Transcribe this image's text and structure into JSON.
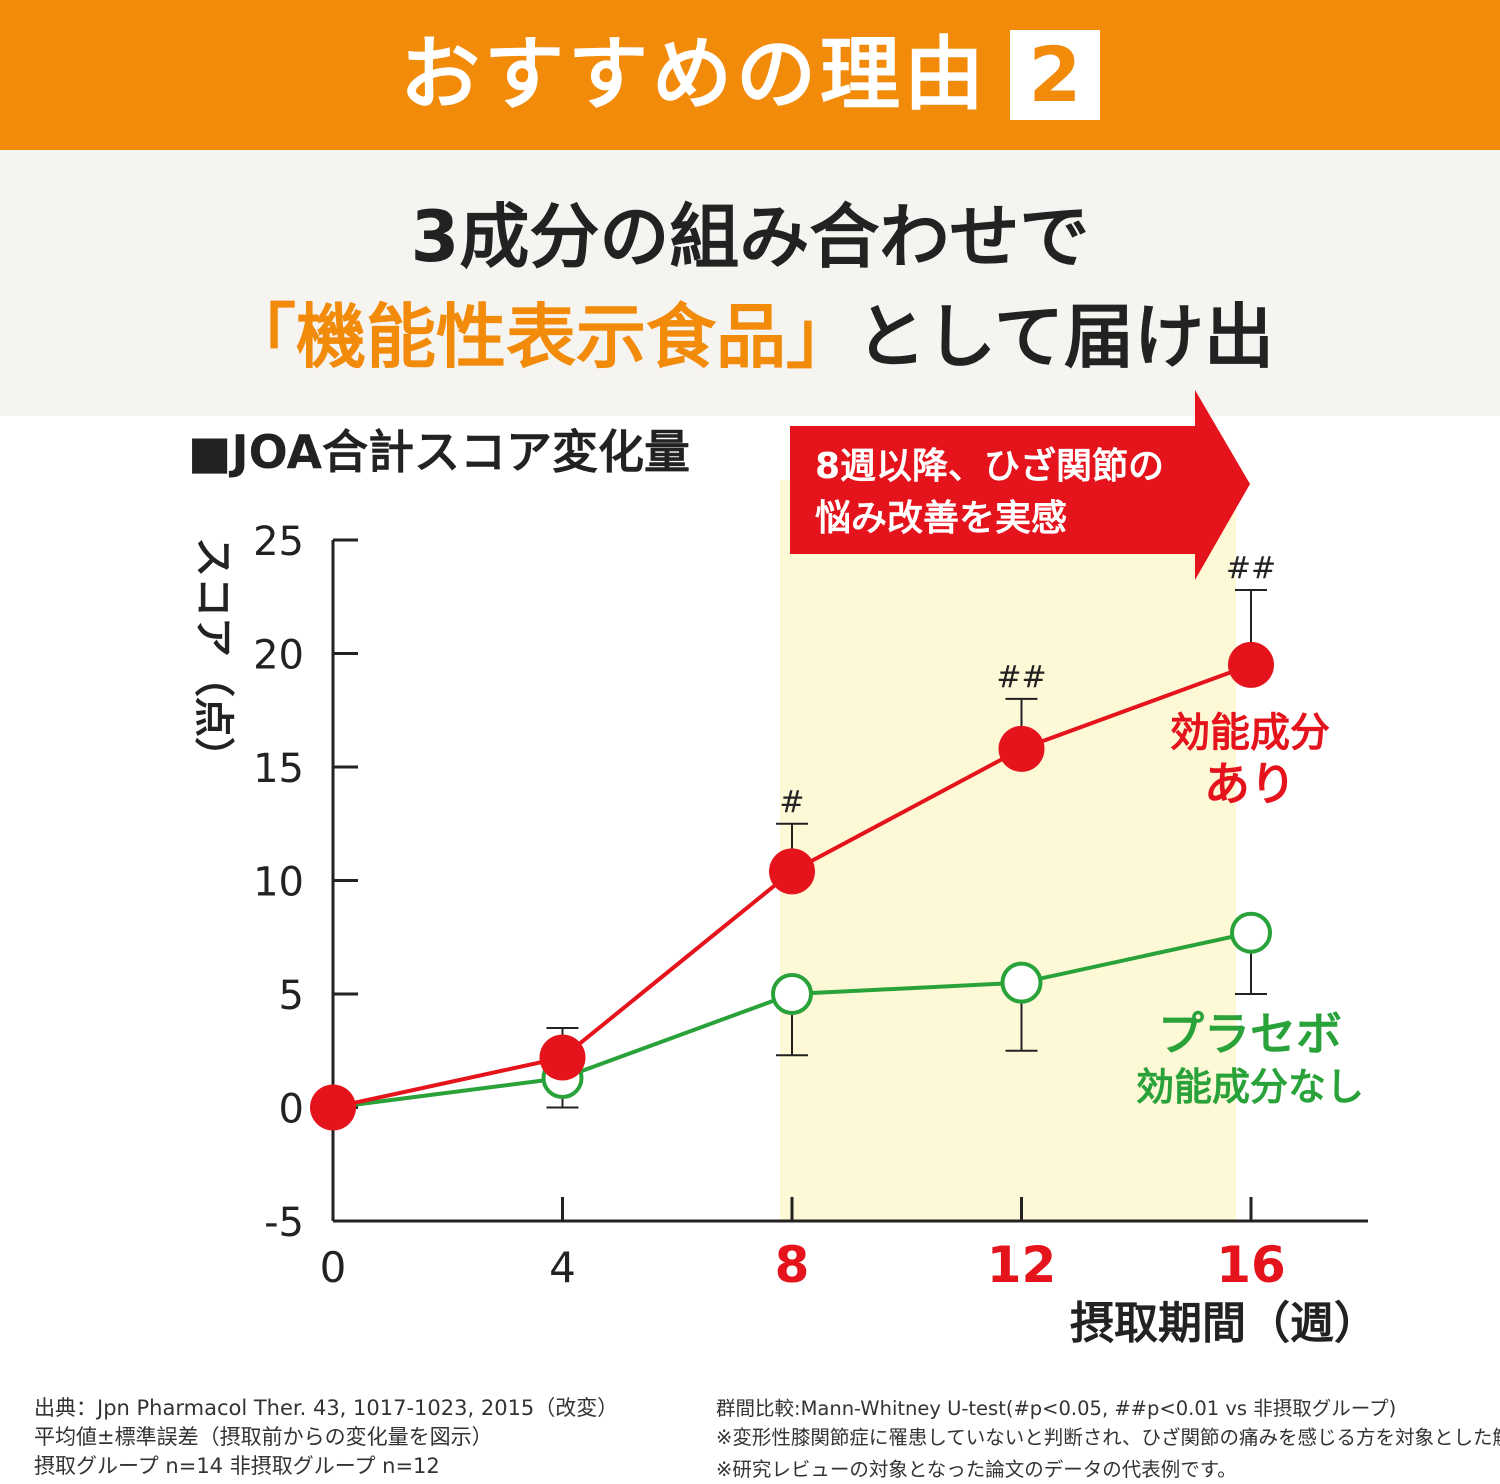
{
  "header": {
    "title": "おすすめの理由",
    "number": "2"
  },
  "subtitle": {
    "line1": "3成分の組み合わせで",
    "highlight": "「機能性表示食品」",
    "line2_rest": "として届け出"
  },
  "arrow_callout": {
    "line1": "8週以降、ひざ関節の",
    "line2": "悩み改善を実感"
  },
  "colors": {
    "orange": "#f28a0a",
    "red": "#e5131c",
    "green": "#2aa23a",
    "highlight_band": "#fdf8d6"
  },
  "chart_data": {
    "type": "line",
    "title": "■JOA合計スコア変化量",
    "ylabel": "スコア（点）",
    "xlabel": "摂取期間（週）",
    "x": [
      0,
      4,
      8,
      12,
      16
    ],
    "x_tick_labels": [
      "0",
      "4",
      "8",
      "12",
      "16"
    ],
    "x_emphasized": [
      8,
      12,
      16
    ],
    "y_ticks": [
      -5,
      0,
      5,
      10,
      15,
      20,
      25
    ],
    "y_tick_labels": [
      "-5",
      "0",
      "5",
      "10",
      "15",
      "20",
      "25"
    ],
    "ylim": [
      -5,
      25
    ],
    "xlim": [
      0,
      16
    ],
    "highlight_range": [
      8,
      16
    ],
    "series": [
      {
        "name": "効能成分あり",
        "label_line1": "効能成分",
        "label_line2": "あり",
        "color": "red",
        "marker": "filled-circle",
        "values": [
          0,
          2.2,
          10.4,
          15.8,
          19.5
        ],
        "error_upper": [
          0,
          3.5,
          12.5,
          18.0,
          22.8
        ],
        "significance": [
          "",
          "",
          "#",
          "##",
          "##"
        ]
      },
      {
        "name": "プラセボ 効能成分なし",
        "label_line1": "プラセボ",
        "label_line2": "効能成分なし",
        "color": "green",
        "marker": "open-circle",
        "values": [
          0,
          1.3,
          5.0,
          5.5,
          7.7
        ],
        "error_lower": [
          0,
          0,
          2.3,
          2.5,
          5.0
        ]
      }
    ]
  },
  "footnotes": {
    "left": [
      "出典：Jpn Pharmacol Ther. 43, 1017-1023, 2015（改変）",
      "平均値±標準誤差（摂取前からの変化量を図示）",
      "摂取グループ n=14  非摂取グループ n=12"
    ],
    "right": [
      "群間比較:Mann-Whitney U-test(#p<0.05, ##p<0.01 vs 非摂取グループ)",
      "※変形性膝関節症に罹患していないと判断され、ひざ関節の痛みを感じる方を対象とした解析",
      "※研究レビューの対象となった論文のデータの代表例です。"
    ]
  }
}
